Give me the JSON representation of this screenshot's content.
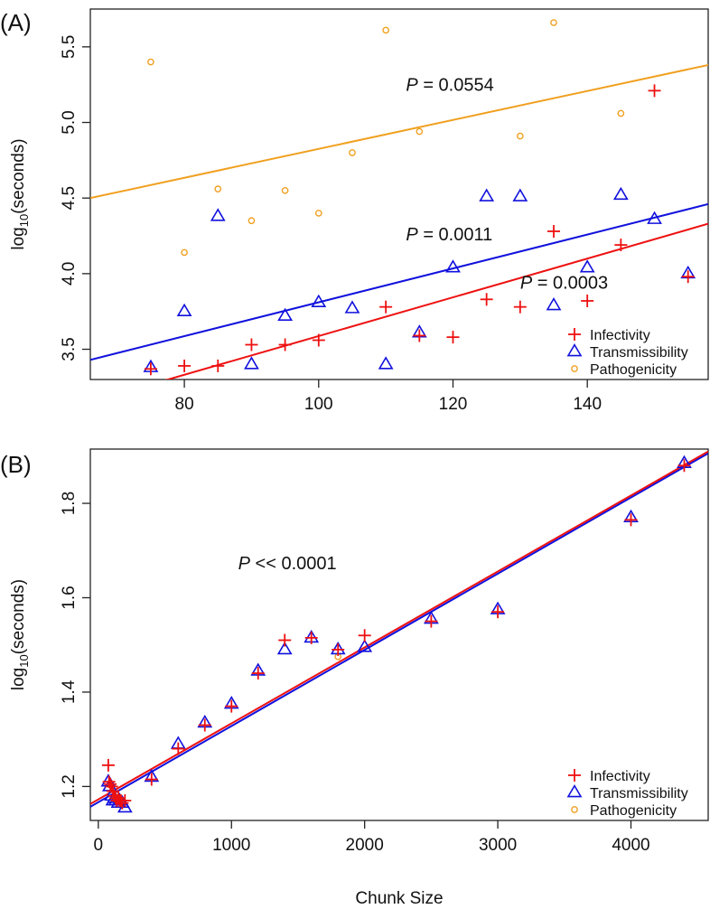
{
  "chart_data": [
    {
      "panel_label": "(A)",
      "type": "scatter",
      "xlabel": "",
      "ylabel_base": "log",
      "ylabel_sub": "10",
      "ylabel_rest": "(seconds)",
      "xlim": [
        66,
        158
      ],
      "ylim": [
        3.3,
        5.75
      ],
      "xticks": [
        80,
        100,
        120,
        140
      ],
      "yticks": [
        3.5,
        4.0,
        4.5,
        5.0,
        5.5
      ],
      "ytick_labels": [
        "3.5",
        "4.0",
        "4.5",
        "5.0",
        "5.5"
      ],
      "legend_position": "bottom-right",
      "series": [
        {
          "name": "Infectivity",
          "marker": "plus",
          "color": "#ee1111",
          "points": [
            [
              75,
              3.37
            ],
            [
              80,
              3.39
            ],
            [
              85,
              3.39
            ],
            [
              90,
              3.53
            ],
            [
              95,
              3.53
            ],
            [
              100,
              3.56
            ],
            [
              110,
              3.78
            ],
            [
              115,
              3.59
            ],
            [
              120,
              3.58
            ],
            [
              125,
              3.83
            ],
            [
              130,
              3.78
            ],
            [
              135,
              4.28
            ],
            [
              140,
              3.82
            ],
            [
              145,
              4.19
            ],
            [
              150,
              5.21
            ],
            [
              155,
              3.98
            ]
          ],
          "fit": [
            [
              76,
              3.28
            ],
            [
              158,
              4.33
            ]
          ]
        },
        {
          "name": "Transmissibility",
          "marker": "triangle",
          "color": "#1111dd",
          "points": [
            [
              75,
              3.38
            ],
            [
              80,
              3.75
            ],
            [
              85,
              4.38
            ],
            [
              90,
              3.4
            ],
            [
              95,
              3.72
            ],
            [
              100,
              3.81
            ],
            [
              105,
              3.77
            ],
            [
              110,
              3.4
            ],
            [
              115,
              3.61
            ],
            [
              120,
              4.04
            ],
            [
              125,
              4.51
            ],
            [
              130,
              4.51
            ],
            [
              135,
              3.79
            ],
            [
              140,
              4.04
            ],
            [
              145,
              4.52
            ],
            [
              150,
              4.36
            ],
            [
              155,
              4.0
            ]
          ],
          "fit": [
            [
              66,
              3.43
            ],
            [
              158,
              4.46
            ]
          ]
        },
        {
          "name": "Pathogenicity",
          "marker": "circle",
          "color": "#f0a020",
          "points": [
            [
              75,
              5.4
            ],
            [
              80,
              4.14
            ],
            [
              85,
              4.56
            ],
            [
              90,
              4.35
            ],
            [
              95,
              4.55
            ],
            [
              100,
              4.4
            ],
            [
              105,
              4.8
            ],
            [
              110,
              5.61
            ],
            [
              115,
              4.94
            ],
            [
              130,
              4.91
            ],
            [
              135,
              5.66
            ],
            [
              145,
              5.06
            ]
          ],
          "fit": [
            [
              66,
              4.5
            ],
            [
              158,
              5.38
            ]
          ]
        }
      ],
      "annotations": [
        {
          "italic": "P",
          "text": " = 0.0554",
          "x": 113,
          "y": 5.21
        },
        {
          "italic": "P",
          "text": " = 0.0011",
          "x": 113,
          "y": 4.22
        },
        {
          "italic": "P",
          "text": " = 0.0003",
          "x": 130,
          "y": 3.9
        }
      ]
    },
    {
      "panel_label": "(B)",
      "type": "scatter",
      "xlabel": "Chunk Size",
      "ylabel_base": "log",
      "ylabel_sub": "10",
      "ylabel_rest": "(seconds)",
      "xlim": [
        -60,
        4580
      ],
      "ylim": [
        1.128,
        1.915
      ],
      "xticks": [
        0,
        1000,
        2000,
        3000,
        4000
      ],
      "yticks": [
        1.2,
        1.4,
        1.6,
        1.8
      ],
      "ytick_labels": [
        "1.2",
        "1.4",
        "1.6",
        "1.8"
      ],
      "legend_position": "bottom-right",
      "series": [
        {
          "name": "Infectivity",
          "marker": "plus",
          "color": "#ee1111",
          "points": [
            [
              75,
              1.245
            ],
            [
              80,
              1.21
            ],
            [
              90,
              1.205
            ],
            [
              100,
              1.2
            ],
            [
              110,
              1.19
            ],
            [
              120,
              1.18
            ],
            [
              130,
              1.175
            ],
            [
              140,
              1.17
            ],
            [
              150,
              1.175
            ],
            [
              160,
              1.17
            ],
            [
              170,
              1.17
            ],
            [
              180,
              1.165
            ],
            [
              200,
              1.17
            ],
            [
              400,
              1.215
            ],
            [
              600,
              1.28
            ],
            [
              800,
              1.33
            ],
            [
              1000,
              1.37
            ],
            [
              1200,
              1.44
            ],
            [
              1400,
              1.51
            ],
            [
              1600,
              1.515
            ],
            [
              1800,
              1.49
            ],
            [
              2000,
              1.52
            ],
            [
              2500,
              1.55
            ],
            [
              3000,
              1.57
            ],
            [
              4000,
              1.765
            ],
            [
              4400,
              1.88
            ]
          ],
          "fit": [
            [
              -60,
              1.163
            ],
            [
              4580,
              1.91
            ]
          ]
        },
        {
          "name": "Transmissibility",
          "marker": "triangle",
          "color": "#1111dd",
          "points": [
            [
              75,
              1.21
            ],
            [
              85,
              1.2
            ],
            [
              100,
              1.18
            ],
            [
              110,
              1.17
            ],
            [
              120,
              1.175
            ],
            [
              130,
              1.17
            ],
            [
              150,
              1.165
            ],
            [
              160,
              1.17
            ],
            [
              180,
              1.165
            ],
            [
              200,
              1.155
            ],
            [
              400,
              1.22
            ],
            [
              600,
              1.29
            ],
            [
              800,
              1.335
            ],
            [
              1000,
              1.375
            ],
            [
              1200,
              1.445
            ],
            [
              1400,
              1.49
            ],
            [
              1600,
              1.515
            ],
            [
              1800,
              1.49
            ],
            [
              2000,
              1.495
            ],
            [
              2500,
              1.555
            ],
            [
              3000,
              1.575
            ],
            [
              4000,
              1.77
            ],
            [
              4400,
              1.885
            ]
          ],
          "fit": [
            [
              -60,
              1.157
            ],
            [
              4580,
              1.906
            ]
          ]
        },
        {
          "name": "Pathogenicity",
          "marker": "circle",
          "color": "#f0a020",
          "points": [
            [
              1800,
              1.475
            ]
          ],
          "fit": null
        }
      ],
      "annotations": [
        {
          "italic": "P",
          "text": " << 0.0001",
          "x": 1050,
          "y": 1.66
        }
      ]
    }
  ]
}
